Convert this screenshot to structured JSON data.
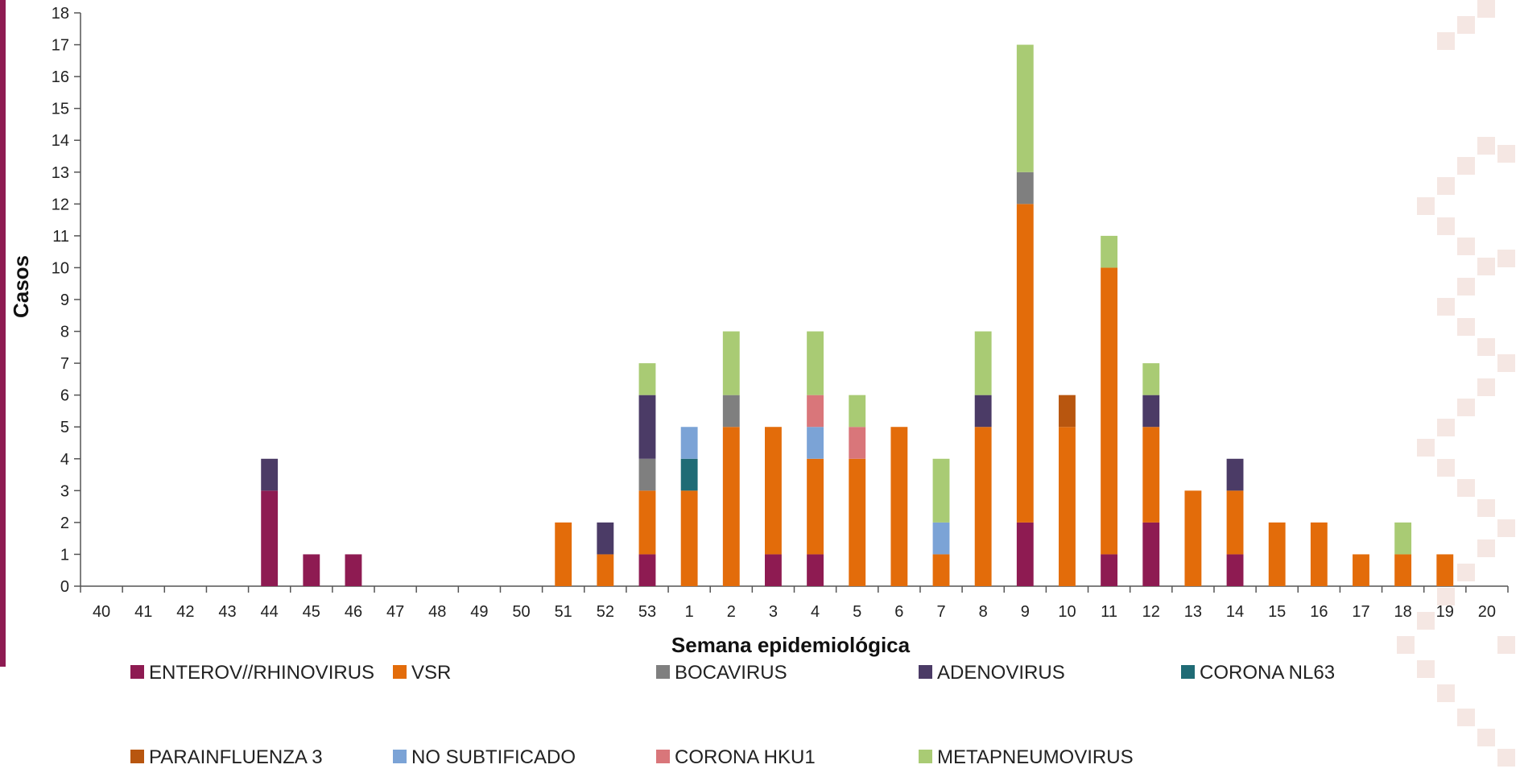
{
  "chart_data": {
    "type": "bar",
    "stacked": true,
    "title": "",
    "xlabel": "Semana epidemiológica",
    "ylabel": "Casos",
    "ylim": [
      0,
      18
    ],
    "yticks": [
      0,
      1,
      2,
      3,
      4,
      5,
      6,
      7,
      8,
      9,
      10,
      11,
      12,
      13,
      14,
      15,
      16,
      17,
      18
    ],
    "grid": false,
    "legend_position": "bottom",
    "categories": [
      "40",
      "41",
      "42",
      "43",
      "44",
      "45",
      "46",
      "47",
      "48",
      "49",
      "50",
      "51",
      "52",
      "53",
      "1",
      "2",
      "3",
      "4",
      "5",
      "6",
      "7",
      "8",
      "9",
      "10",
      "11",
      "12",
      "13",
      "14",
      "15",
      "16",
      "17",
      "18",
      "19",
      "20"
    ],
    "series": [
      {
        "name": "ENTEROV//RHINOVIRUS",
        "color": "#8E1B52",
        "values": [
          0,
          0,
          0,
          0,
          3,
          1,
          1,
          0,
          0,
          0,
          0,
          0,
          0,
          1,
          0,
          0,
          1,
          1,
          0,
          0,
          0,
          0,
          2,
          0,
          1,
          2,
          0,
          1,
          0,
          0,
          0,
          0,
          0,
          0
        ]
      },
      {
        "name": "VSR",
        "color": "#E36C0A",
        "values": [
          0,
          0,
          0,
          0,
          0,
          0,
          0,
          0,
          0,
          0,
          0,
          2,
          1,
          2,
          3,
          5,
          4,
          3,
          4,
          5,
          1,
          5,
          10,
          5,
          9,
          3,
          3,
          2,
          2,
          2,
          1,
          1,
          1,
          0
        ]
      },
      {
        "name": "BOCAVIRUS",
        "color": "#7F7F7F",
        "values": [
          0,
          0,
          0,
          0,
          0,
          0,
          0,
          0,
          0,
          0,
          0,
          0,
          0,
          1,
          0,
          1,
          0,
          0,
          0,
          0,
          0,
          0,
          1,
          0,
          0,
          0,
          0,
          0,
          0,
          0,
          0,
          0,
          0,
          0
        ]
      },
      {
        "name": "ADENOVIRUS",
        "color": "#4B3B66",
        "values": [
          0,
          0,
          0,
          0,
          1,
          0,
          0,
          0,
          0,
          0,
          0,
          0,
          1,
          2,
          0,
          0,
          0,
          0,
          0,
          0,
          0,
          1,
          0,
          0,
          0,
          1,
          0,
          1,
          0,
          0,
          0,
          0,
          0,
          0
        ]
      },
      {
        "name": "CORONA NL63",
        "color": "#1F6B75",
        "values": [
          0,
          0,
          0,
          0,
          0,
          0,
          0,
          0,
          0,
          0,
          0,
          0,
          0,
          0,
          1,
          0,
          0,
          0,
          0,
          0,
          0,
          0,
          0,
          0,
          0,
          0,
          0,
          0,
          0,
          0,
          0,
          0,
          0,
          0
        ]
      },
      {
        "name": "PARAINFLUENZA 3",
        "color": "#B8560F",
        "values": [
          0,
          0,
          0,
          0,
          0,
          0,
          0,
          0,
          0,
          0,
          0,
          0,
          0,
          0,
          0,
          0,
          0,
          0,
          0,
          0,
          0,
          0,
          0,
          1,
          0,
          0,
          0,
          0,
          0,
          0,
          0,
          0,
          0,
          0
        ]
      },
      {
        "name": "NO SUBTIFICADO",
        "color": "#7BA3D6",
        "values": [
          0,
          0,
          0,
          0,
          0,
          0,
          0,
          0,
          0,
          0,
          0,
          0,
          0,
          0,
          1,
          0,
          0,
          1,
          0,
          0,
          1,
          0,
          0,
          0,
          0,
          0,
          0,
          0,
          0,
          0,
          0,
          0,
          0,
          0
        ]
      },
      {
        "name": "CORONA HKU1",
        "color": "#D9767A",
        "values": [
          0,
          0,
          0,
          0,
          0,
          0,
          0,
          0,
          0,
          0,
          0,
          0,
          0,
          0,
          0,
          0,
          0,
          1,
          1,
          0,
          0,
          0,
          0,
          0,
          0,
          0,
          0,
          0,
          0,
          0,
          0,
          0,
          0,
          0
        ]
      },
      {
        "name": "METAPNEUMOVIRUS",
        "color": "#A9CB74",
        "values": [
          0,
          0,
          0,
          0,
          0,
          0,
          0,
          0,
          0,
          0,
          0,
          0,
          0,
          1,
          0,
          2,
          0,
          2,
          1,
          0,
          2,
          2,
          4,
          0,
          1,
          1,
          0,
          0,
          0,
          0,
          0,
          1,
          0,
          0
        ]
      }
    ]
  },
  "decor_colors": {
    "side_bar": "#8E1B52",
    "pattern": "#E9C9C0"
  }
}
